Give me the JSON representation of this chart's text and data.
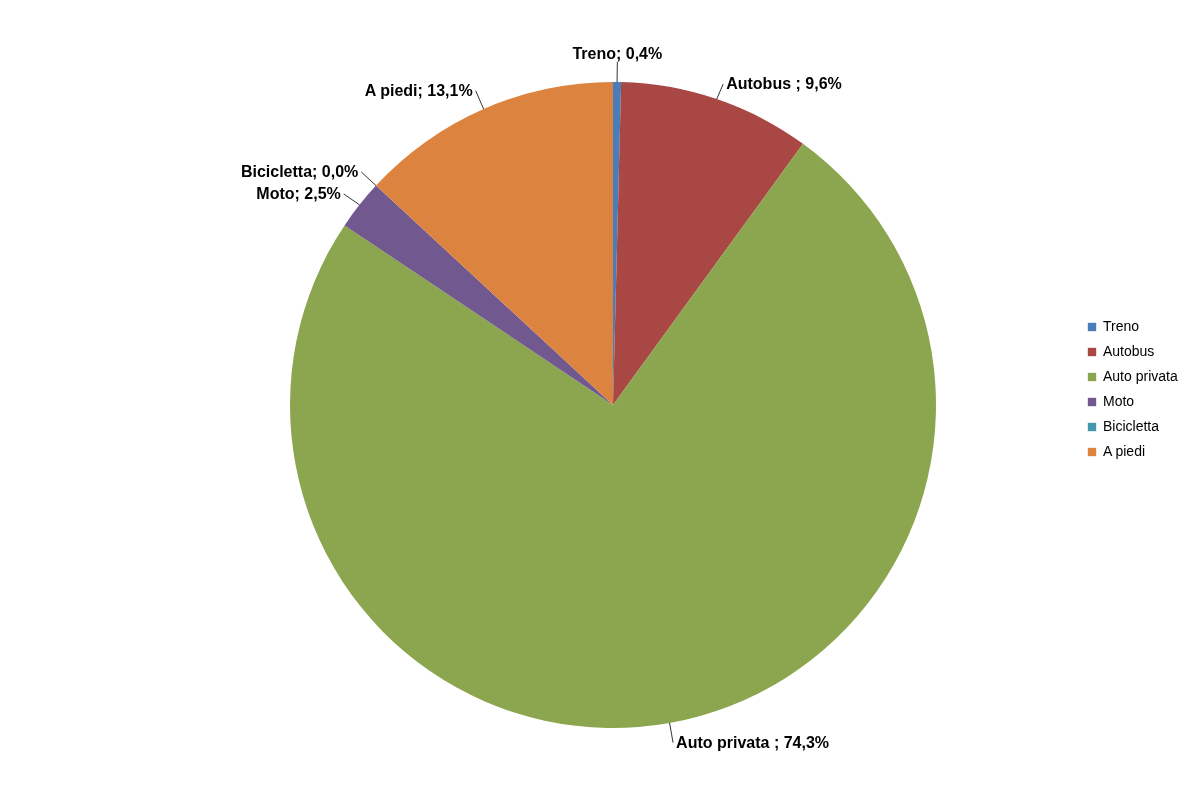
{
  "chart_data": {
    "type": "pie",
    "categories": [
      "Treno",
      "Autobus",
      "Auto privata",
      "Moto",
      "Bicicletta",
      "A piedi"
    ],
    "values": [
      0.4,
      9.6,
      74.3,
      2.5,
      0.0,
      13.1
    ],
    "colors": [
      "#4a7ebb",
      "#a84744",
      "#8ba64e",
      "#71588f",
      "#4198af",
      "#dc843f"
    ],
    "value_labels": [
      "Treno; 0,4%",
      "Autobus ; 9,6%",
      "Auto privata ; 74,3%",
      "Moto; 2,5%",
      "Bicicletta; 0,0%",
      "A piedi; 13,1%"
    ],
    "legend": "right"
  }
}
